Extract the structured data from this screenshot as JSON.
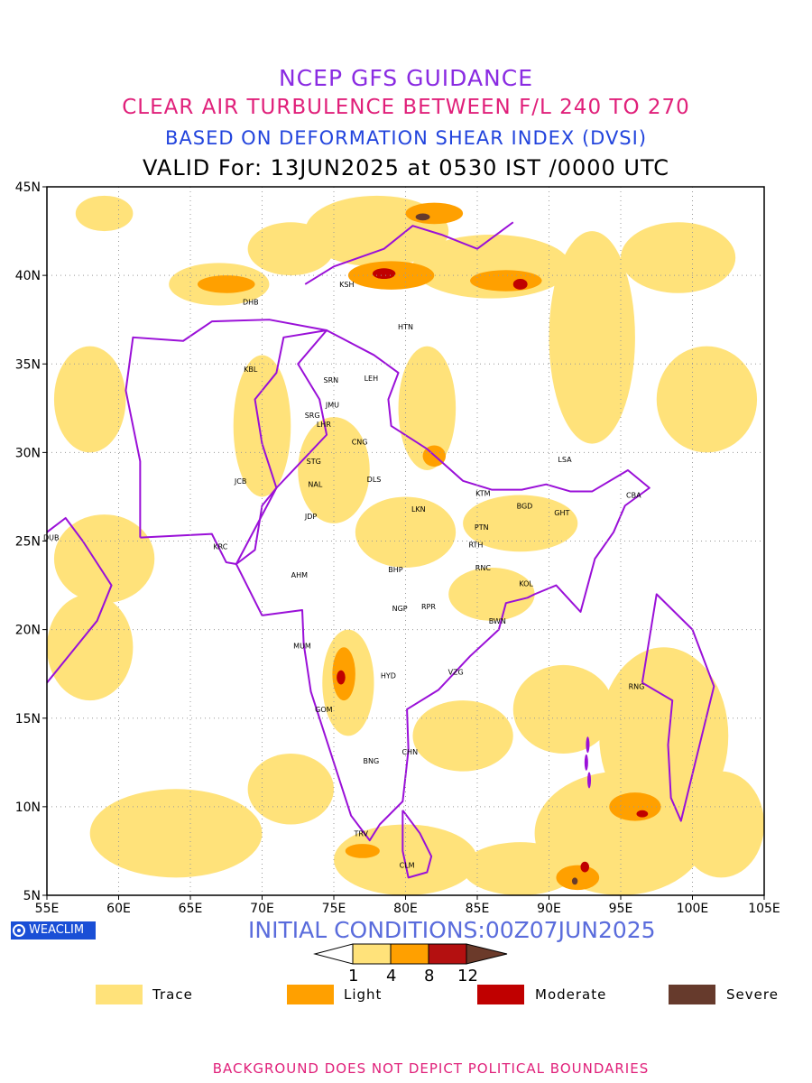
{
  "titles": {
    "line1": "NCEP GFS GUIDANCE",
    "line2": "CLEAR AIR TURBULENCE BETWEEN F/L 240 TO 270",
    "line3": "BASED ON DEFORMATION SHEAR INDEX (DVSI)",
    "line4": "VALID For: 13JUN2025 at 0530 IST /0000 UTC"
  },
  "map": {
    "lon_range": [
      55,
      105
    ],
    "lat_range": [
      5,
      45
    ],
    "x_ticks": [
      "55E",
      "60E",
      "65E",
      "70E",
      "75E",
      "80E",
      "85E",
      "90E",
      "95E",
      "100E",
      "105E"
    ],
    "y_ticks": [
      "45N",
      "40N",
      "35N",
      "30N",
      "25N",
      "20N",
      "15N",
      "10N",
      "5N"
    ],
    "boundary_color": "#9a10d8",
    "grid": "dotted"
  },
  "stations": [
    {
      "code": "DHB",
      "lon": 69.2,
      "lat": 38.5
    },
    {
      "code": "KSH",
      "lon": 75.9,
      "lat": 39.5
    },
    {
      "code": "HTN",
      "lon": 80.0,
      "lat": 37.1
    },
    {
      "code": "KBL",
      "lon": 69.2,
      "lat": 34.7
    },
    {
      "code": "SRN",
      "lon": 74.8,
      "lat": 34.1
    },
    {
      "code": "LEH",
      "lon": 77.6,
      "lat": 34.2
    },
    {
      "code": "JMU",
      "lon": 74.9,
      "lat": 32.7
    },
    {
      "code": "SRG",
      "lon": 73.5,
      "lat": 32.1
    },
    {
      "code": "LHR",
      "lon": 74.3,
      "lat": 31.6
    },
    {
      "code": "CNG",
      "lon": 76.8,
      "lat": 30.6
    },
    {
      "code": "STG",
      "lon": 73.6,
      "lat": 29.5
    },
    {
      "code": "LSA",
      "lon": 91.1,
      "lat": 29.6
    },
    {
      "code": "JCB",
      "lon": 68.5,
      "lat": 28.4
    },
    {
      "code": "NAL",
      "lon": 73.7,
      "lat": 28.2
    },
    {
      "code": "DLS",
      "lon": 77.8,
      "lat": 28.5
    },
    {
      "code": "KTM",
      "lon": 85.4,
      "lat": 27.7
    },
    {
      "code": "BGD",
      "lon": 88.3,
      "lat": 27.0
    },
    {
      "code": "CBA",
      "lon": 95.9,
      "lat": 27.6
    },
    {
      "code": "LKN",
      "lon": 80.9,
      "lat": 26.8
    },
    {
      "code": "GHT",
      "lon": 90.9,
      "lat": 26.6
    },
    {
      "code": "JDP",
      "lon": 73.4,
      "lat": 26.4
    },
    {
      "code": "PTN",
      "lon": 85.3,
      "lat": 25.8
    },
    {
      "code": "DUB",
      "lon": 55.3,
      "lat": 25.2
    },
    {
      "code": "KRC",
      "lon": 67.1,
      "lat": 24.7
    },
    {
      "code": "RTH",
      "lon": 84.9,
      "lat": 24.8
    },
    {
      "code": "BHP",
      "lon": 79.3,
      "lat": 23.4
    },
    {
      "code": "AHM",
      "lon": 72.6,
      "lat": 23.1
    },
    {
      "code": "RNC",
      "lon": 85.4,
      "lat": 23.5
    },
    {
      "code": "KOL",
      "lon": 88.4,
      "lat": 22.6
    },
    {
      "code": "NGP",
      "lon": 79.6,
      "lat": 21.2
    },
    {
      "code": "RPR",
      "lon": 81.6,
      "lat": 21.3
    },
    {
      "code": "BWN",
      "lon": 86.4,
      "lat": 20.5
    },
    {
      "code": "MUM",
      "lon": 72.8,
      "lat": 19.1
    },
    {
      "code": "HYD",
      "lon": 78.8,
      "lat": 17.4
    },
    {
      "code": "VZG",
      "lon": 83.5,
      "lat": 17.6
    },
    {
      "code": "RNG",
      "lon": 96.1,
      "lat": 16.8
    },
    {
      "code": "GOM",
      "lon": 74.3,
      "lat": 15.5
    },
    {
      "code": "CHN",
      "lon": 80.3,
      "lat": 13.1
    },
    {
      "code": "BNG",
      "lon": 77.6,
      "lat": 12.6
    },
    {
      "code": "TRV",
      "lon": 76.9,
      "lat": 8.5
    },
    {
      "code": "CLM",
      "lon": 80.1,
      "lat": 6.7
    }
  ],
  "turbulence_patches": [
    {
      "level": "Trace",
      "lon": 59,
      "lat": 43.5,
      "rx": 2.0,
      "ry": 1.0
    },
    {
      "level": "Trace",
      "lon": 67,
      "lat": 39.5,
      "rx": 3.5,
      "ry": 1.2
    },
    {
      "level": "Trace",
      "lon": 72,
      "lat": 41.5,
      "rx": 3.0,
      "ry": 1.5
    },
    {
      "level": "Trace",
      "lon": 78,
      "lat": 42.5,
      "rx": 5.0,
      "ry": 2.0
    },
    {
      "level": "Trace",
      "lon": 86,
      "lat": 40.5,
      "rx": 5.5,
      "ry": 1.8
    },
    {
      "level": "Trace",
      "lon": 93,
      "lat": 36.5,
      "rx": 3.0,
      "ry": 6.0
    },
    {
      "level": "Trace",
      "lon": 99,
      "lat": 41.0,
      "rx": 4.0,
      "ry": 2.0
    },
    {
      "level": "Trace",
      "lon": 101,
      "lat": 33.0,
      "rx": 3.5,
      "ry": 3.0
    },
    {
      "level": "Trace",
      "lon": 58,
      "lat": 33.0,
      "rx": 2.5,
      "ry": 3.0
    },
    {
      "level": "Trace",
      "lon": 70,
      "lat": 31.5,
      "rx": 2.0,
      "ry": 4.0
    },
    {
      "level": "Trace",
      "lon": 75,
      "lat": 29.0,
      "rx": 2.5,
      "ry": 3.0
    },
    {
      "level": "Trace",
      "lon": 81.5,
      "lat": 32.5,
      "rx": 2.0,
      "ry": 3.5
    },
    {
      "level": "Trace",
      "lon": 80,
      "lat": 25.5,
      "rx": 3.5,
      "ry": 2.0
    },
    {
      "level": "Trace",
      "lon": 88,
      "lat": 26.0,
      "rx": 4.0,
      "ry": 1.6
    },
    {
      "level": "Trace",
      "lon": 59,
      "lat": 24.0,
      "rx": 3.5,
      "ry": 2.5
    },
    {
      "level": "Trace",
      "lon": 58,
      "lat": 19.0,
      "rx": 3.0,
      "ry": 3.0
    },
    {
      "level": "Trace",
      "lon": 86,
      "lat": 22.0,
      "rx": 3.0,
      "ry": 1.5
    },
    {
      "level": "Trace",
      "lon": 76,
      "lat": 17.0,
      "rx": 1.8,
      "ry": 3.0
    },
    {
      "level": "Trace",
      "lon": 84,
      "lat": 14.0,
      "rx": 3.5,
      "ry": 2.0
    },
    {
      "level": "Trace",
      "lon": 91,
      "lat": 15.5,
      "rx": 3.5,
      "ry": 2.5
    },
    {
      "level": "Trace",
      "lon": 98,
      "lat": 14.0,
      "rx": 4.5,
      "ry": 5.0
    },
    {
      "level": "Trace",
      "lon": 95,
      "lat": 8.5,
      "rx": 6.0,
      "ry": 3.5
    },
    {
      "level": "Trace",
      "lon": 102,
      "lat": 9.0,
      "rx": 3.0,
      "ry": 3.0
    },
    {
      "level": "Trace",
      "lon": 64,
      "lat": 8.5,
      "rx": 6.0,
      "ry": 2.5
    },
    {
      "level": "Trace",
      "lon": 72,
      "lat": 11.0,
      "rx": 3.0,
      "ry": 2.0
    },
    {
      "level": "Trace",
      "lon": 80,
      "lat": 7.0,
      "rx": 5.0,
      "ry": 2.0
    },
    {
      "level": "Trace",
      "lon": 88,
      "lat": 6.5,
      "rx": 4.0,
      "ry": 1.5
    },
    {
      "level": "Light",
      "lon": 67.5,
      "lat": 39.5,
      "rx": 2.0,
      "ry": 0.5
    },
    {
      "level": "Light",
      "lon": 79,
      "lat": 40.0,
      "rx": 3.0,
      "ry": 0.8
    },
    {
      "level": "Light",
      "lon": 87,
      "lat": 39.7,
      "rx": 2.5,
      "ry": 0.6
    },
    {
      "level": "Light",
      "lon": 82,
      "lat": 43.5,
      "rx": 2.0,
      "ry": 0.6
    },
    {
      "level": "Light",
      "lon": 75.7,
      "lat": 17.5,
      "rx": 0.8,
      "ry": 1.5
    },
    {
      "level": "Light",
      "lon": 96,
      "lat": 10.0,
      "rx": 1.8,
      "ry": 0.8
    },
    {
      "level": "Light",
      "lon": 92,
      "lat": 6.0,
      "rx": 1.5,
      "ry": 0.7
    },
    {
      "level": "Light",
      "lon": 82,
      "lat": 29.8,
      "rx": 0.8,
      "ry": 0.6
    },
    {
      "level": "Light",
      "lon": 77,
      "lat": 7.5,
      "rx": 1.2,
      "ry": 0.4
    },
    {
      "level": "Moderate",
      "lon": 78.5,
      "lat": 40.1,
      "rx": 0.8,
      "ry": 0.3
    },
    {
      "level": "Moderate",
      "lon": 88,
      "lat": 39.5,
      "rx": 0.5,
      "ry": 0.3
    },
    {
      "level": "Moderate",
      "lon": 75.5,
      "lat": 17.3,
      "rx": 0.3,
      "ry": 0.4
    },
    {
      "level": "Moderate",
      "lon": 92.5,
      "lat": 6.6,
      "rx": 0.3,
      "ry": 0.3
    },
    {
      "level": "Moderate",
      "lon": 96.5,
      "lat": 9.6,
      "rx": 0.4,
      "ry": 0.2
    },
    {
      "level": "Severe",
      "lon": 81.2,
      "lat": 43.3,
      "rx": 0.5,
      "ry": 0.2
    },
    {
      "level": "Severe",
      "lon": 91.8,
      "lat": 5.8,
      "rx": 0.2,
      "ry": 0.2
    }
  ],
  "legend": {
    "colorbar": {
      "ticks": [
        "1",
        "4",
        "8",
        "12"
      ],
      "colors": [
        "#ffffff",
        "#ffe27a",
        "#ffa000",
        "#b41010",
        "#6b3a2a"
      ]
    },
    "items": [
      {
        "label": "Trace",
        "color": "#ffe27a"
      },
      {
        "label": "Light",
        "color": "#ffa000"
      },
      {
        "label": "Moderate",
        "color": "#c00000"
      },
      {
        "label": "Severe",
        "color": "#663a2c"
      }
    ]
  },
  "branding": {
    "logo_text": "WEACLIM"
  },
  "initial_conditions": "INITIAL CONDITIONS:00Z07JUN2025",
  "footer": "BACKGROUND DOES NOT DEPICT POLITICAL BOUNDARIES"
}
